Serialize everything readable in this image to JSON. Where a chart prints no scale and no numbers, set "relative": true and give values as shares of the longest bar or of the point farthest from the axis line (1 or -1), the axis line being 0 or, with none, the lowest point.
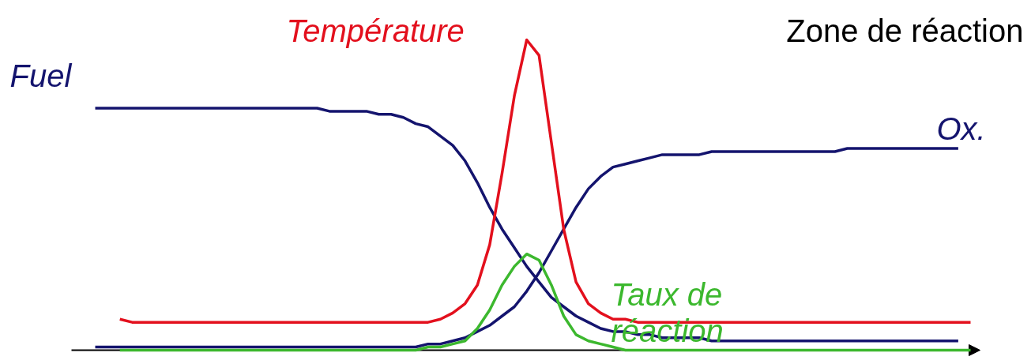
{
  "chart_data": {
    "type": "line",
    "relative": true,
    "legend": false,
    "grid": false,
    "categories": [
      null,
      null,
      null,
      null,
      null,
      null,
      null,
      null,
      null,
      null,
      null,
      null,
      null,
      null,
      null,
      null,
      null,
      null,
      null,
      null,
      null,
      null,
      null,
      null,
      null,
      null,
      null,
      null,
      null,
      null,
      null,
      null,
      null,
      null,
      null,
      null,
      null,
      null,
      null,
      null,
      null,
      null,
      null,
      null,
      null,
      null,
      null,
      null,
      null,
      null,
      null,
      null,
      null,
      null,
      null,
      null,
      null,
      null,
      null,
      null,
      null,
      null,
      null,
      null,
      null,
      null,
      null,
      null,
      null,
      null,
      null,
      null
    ],
    "series": [
      {
        "name": "Fuel",
        "color": "#14146e",
        "values": [
          0.78,
          0.78,
          0.78,
          0.78,
          0.78,
          0.78,
          0.78,
          0.78,
          0.78,
          0.78,
          0.78,
          0.78,
          0.78,
          0.78,
          0.78,
          0.78,
          0.78,
          0.78,
          0.78,
          0.77,
          0.77,
          0.77,
          0.77,
          0.76,
          0.76,
          0.75,
          0.73,
          0.72,
          0.69,
          0.66,
          0.61,
          0.54,
          0.46,
          0.39,
          0.33,
          0.27,
          0.22,
          0.17,
          0.14,
          0.11,
          0.09,
          0.07,
          0.06,
          0.06,
          0.05,
          0.05,
          0.04,
          0.04,
          0.04,
          0.04,
          0.03,
          0.03,
          0.03,
          0.03,
          0.03,
          0.03,
          0.03,
          0.03,
          0.03,
          0.03,
          0.03,
          0.03,
          0.03,
          0.03,
          0.03,
          0.03,
          0.03,
          0.03,
          0.03,
          0.03,
          0.03,
          null
        ]
      },
      {
        "name": "Ox.",
        "color": "#14146e",
        "values": [
          0.01,
          0.01,
          0.01,
          0.01,
          0.01,
          0.01,
          0.01,
          0.01,
          0.01,
          0.01,
          0.01,
          0.01,
          0.01,
          0.01,
          0.01,
          0.01,
          0.01,
          0.01,
          0.01,
          0.01,
          0.01,
          0.01,
          0.01,
          0.01,
          0.01,
          0.01,
          0.01,
          0.02,
          0.02,
          0.03,
          0.04,
          0.06,
          0.08,
          0.11,
          0.14,
          0.19,
          0.25,
          0.32,
          0.39,
          0.46,
          0.52,
          0.56,
          0.59,
          0.6,
          0.61,
          0.62,
          0.63,
          0.63,
          0.63,
          0.63,
          0.64,
          0.64,
          0.64,
          0.64,
          0.64,
          0.64,
          0.64,
          0.64,
          0.64,
          0.64,
          0.64,
          0.65,
          0.65,
          0.65,
          0.65,
          0.65,
          0.65,
          0.65,
          0.65,
          0.65,
          0.65,
          null
        ]
      },
      {
        "name": "Température",
        "color": "#e3101d",
        "values": [
          null,
          null,
          0.1,
          0.09,
          0.09,
          0.09,
          0.09,
          0.09,
          0.09,
          0.09,
          0.09,
          0.09,
          0.09,
          0.09,
          0.09,
          0.09,
          0.09,
          0.09,
          0.09,
          0.09,
          0.09,
          0.09,
          0.09,
          0.09,
          0.09,
          0.09,
          0.09,
          0.09,
          0.1,
          0.12,
          0.15,
          0.21,
          0.34,
          0.57,
          0.82,
          1.0,
          0.95,
          0.67,
          0.39,
          0.22,
          0.15,
          0.12,
          0.1,
          0.1,
          0.09,
          0.09,
          0.09,
          0.09,
          0.09,
          0.09,
          0.09,
          0.09,
          0.09,
          0.09,
          0.09,
          0.09,
          0.09,
          0.09,
          0.09,
          0.09,
          0.09,
          0.09,
          0.09,
          0.09,
          0.09,
          0.09,
          0.09,
          0.09,
          0.09,
          0.09,
          0.09,
          0.09
        ]
      },
      {
        "name": "Taux de réaction",
        "color": "#3cb82e",
        "values": [
          null,
          null,
          0.0,
          0.0,
          0.0,
          0.0,
          0.0,
          0.0,
          0.0,
          0.0,
          0.0,
          0.0,
          0.0,
          0.0,
          0.0,
          0.0,
          0.0,
          0.0,
          0.0,
          0.0,
          0.0,
          0.0,
          0.0,
          0.0,
          0.0,
          0.0,
          0.0,
          0.01,
          0.01,
          0.02,
          0.03,
          0.07,
          0.13,
          0.21,
          0.27,
          0.31,
          0.29,
          0.21,
          0.11,
          0.05,
          0.03,
          0.02,
          0.01,
          0.0,
          0.0,
          0.0,
          0.0,
          0.0,
          0.0,
          0.0,
          0.0,
          0.0,
          0.0,
          0.0,
          0.0,
          0.0,
          0.0,
          0.0,
          0.0,
          0.0,
          0.0,
          0.0,
          0.0,
          0.0,
          0.0,
          0.0,
          0.0,
          0.0,
          0.0,
          0.0,
          0.0,
          0.0
        ]
      }
    ],
    "annotations": [
      "Zone de réaction"
    ]
  }
}
